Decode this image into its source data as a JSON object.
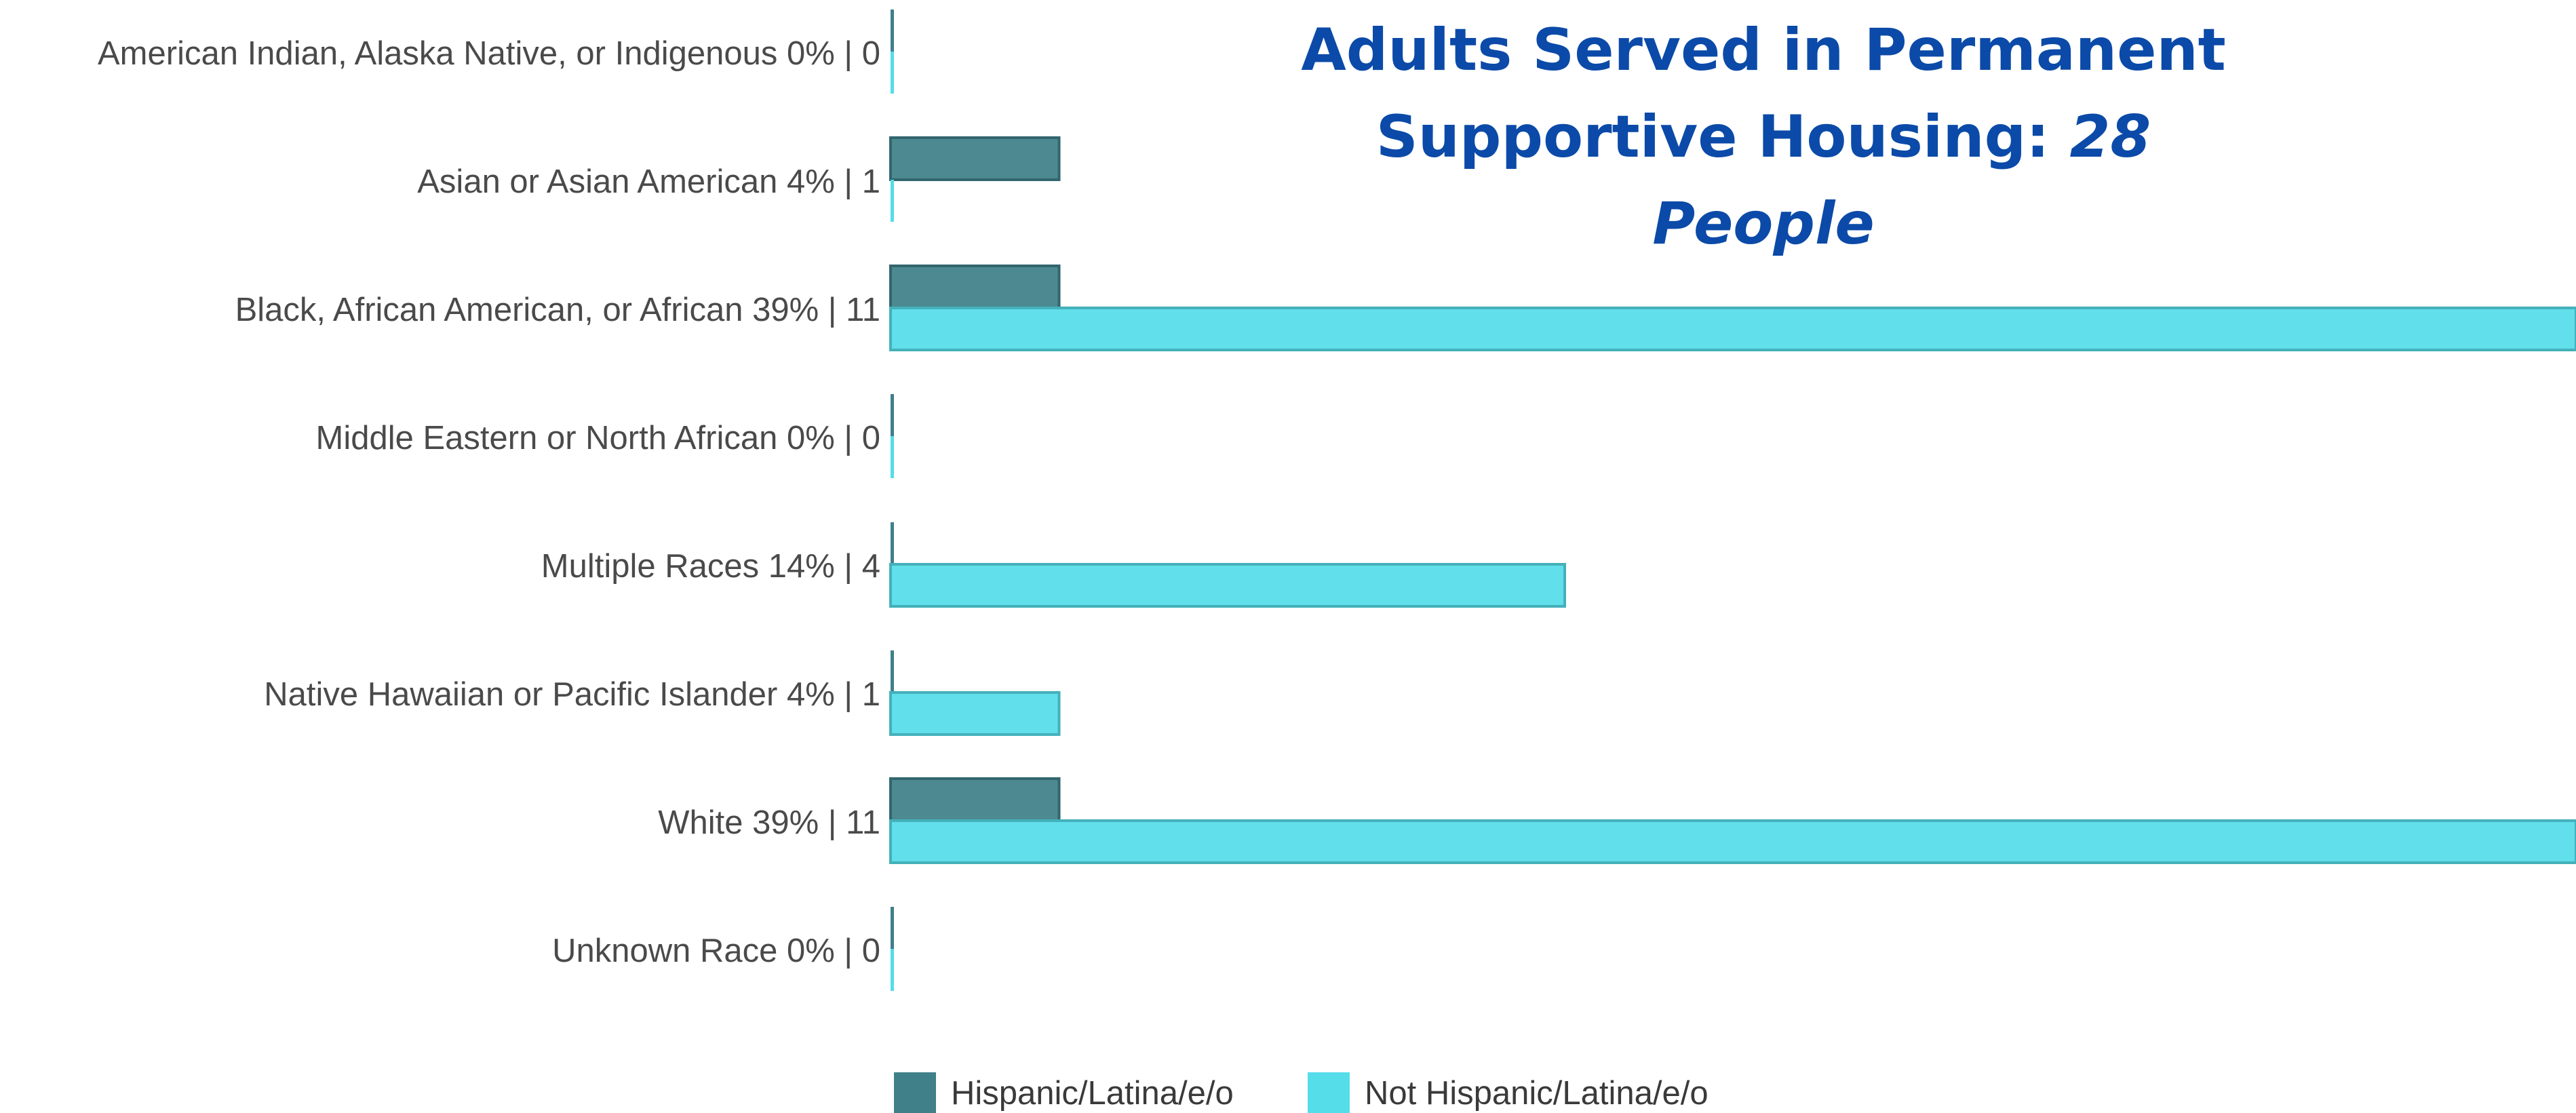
{
  "chart_data": {
    "type": "bar",
    "orientation": "horizontal",
    "title": {
      "line1": "Adults Served in Permanent",
      "line2_prefix": "Supportive Housing: ",
      "line2_emphasis": "28 People"
    },
    "categories": [
      "American Indian, Alaska Native, or Indigenous 0% | 0",
      "Asian or Asian American 4% | 1",
      "Black, African American, or African 39% | 11",
      "Middle Eastern or North African 0% | 0",
      "Multiple Races 14% | 4",
      "Native Hawaiian or Pacific Islander 4% | 1",
      "White 39% | 11",
      "Unknown Race 0% | 0"
    ],
    "series": [
      {
        "name": "Hispanic/Latina/e/o",
        "color": "#3f8089",
        "values": [
          0,
          1,
          1,
          0,
          0,
          0,
          1,
          0
        ]
      },
      {
        "name": "Not Hispanic/Latina/e/o",
        "color": "#55dde9",
        "values": [
          0,
          0,
          10,
          0,
          4,
          1,
          10,
          0
        ]
      }
    ],
    "xlim": [
      0,
      10
    ],
    "grid": false,
    "legend_position": "bottom-left"
  }
}
